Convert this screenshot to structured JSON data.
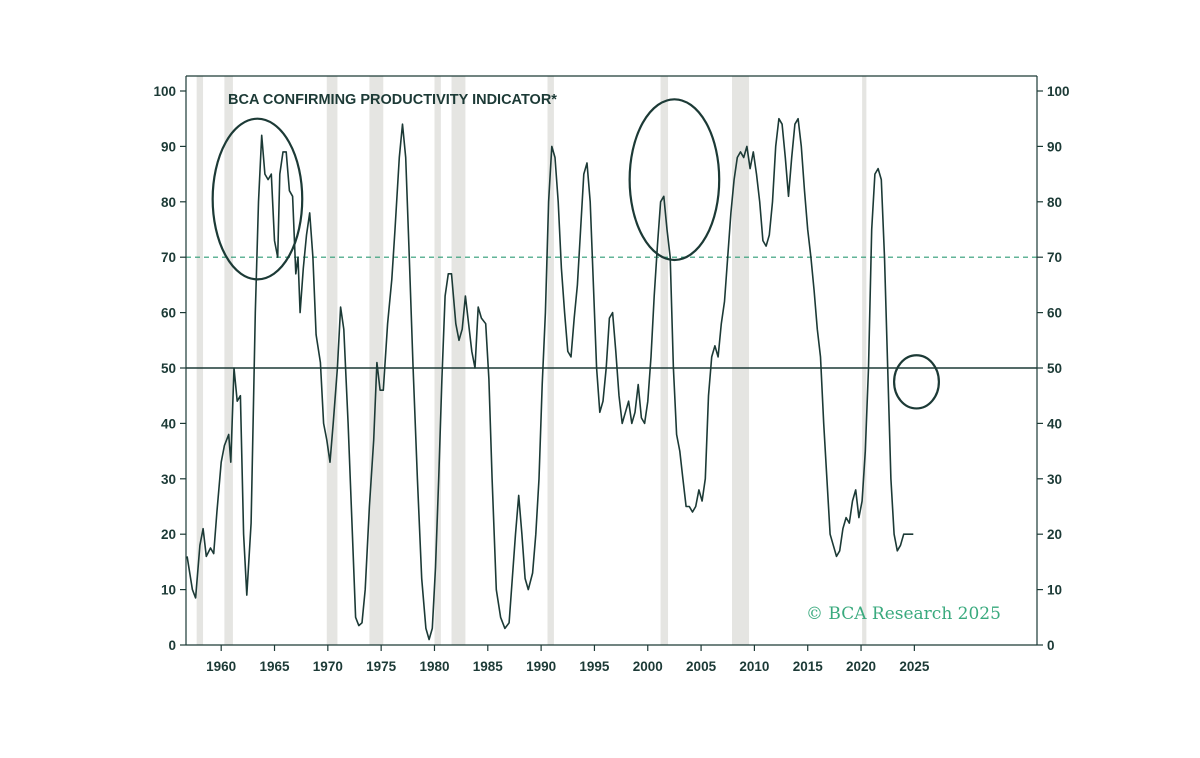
{
  "chart_data": {
    "type": "line",
    "title": "BCA CONFIRMING PRODUCTIVITY INDICATOR*",
    "credit": "© BCA Research 2025",
    "xlim": [
      1956.7,
      2036.5
    ],
    "ylim": [
      0,
      100
    ],
    "x_ticks": [
      1960,
      1965,
      1970,
      1975,
      1980,
      1985,
      1990,
      1995,
      2000,
      2005,
      2010,
      2015,
      2020,
      2025
    ],
    "y_ticks": [
      0,
      10,
      20,
      30,
      40,
      50,
      60,
      70,
      80,
      90,
      100
    ],
    "reference_lines": [
      {
        "y": 70,
        "style": "dashed",
        "color": "#2e9c76"
      },
      {
        "y": 50,
        "style": "solid",
        "color": "#1c3a36"
      }
    ],
    "recessions": [
      [
        1957.7,
        1958.3
      ],
      [
        1960.3,
        1961.1
      ],
      [
        1969.9,
        1970.9
      ],
      [
        1973.9,
        1975.2
      ],
      [
        1980.0,
        1980.6
      ],
      [
        1981.6,
        1982.9
      ],
      [
        1990.6,
        1991.2
      ],
      [
        2001.2,
        2001.9
      ],
      [
        2007.9,
        2009.5
      ],
      [
        2020.1,
        2020.5
      ]
    ],
    "highlight_circles": [
      {
        "cx": 1963.4,
        "cy": 80.5,
        "rx": 4.2,
        "ry": 14.5
      },
      {
        "cx": 2002.5,
        "cy": 84,
        "rx": 4.2,
        "ry": 14.5
      },
      {
        "cx": 2025.2,
        "cy": 47.5,
        "rx": 2.1,
        "ry": 4.8
      }
    ],
    "series": [
      {
        "color": "#1c3a36",
        "points": [
          [
            1956.8,
            16
          ],
          [
            1957.3,
            10
          ],
          [
            1957.6,
            8.5
          ],
          [
            1958.0,
            18
          ],
          [
            1958.3,
            21
          ],
          [
            1958.6,
            16
          ],
          [
            1959.0,
            17.5
          ],
          [
            1959.3,
            16.5
          ],
          [
            1959.6,
            24
          ],
          [
            1960.0,
            33
          ],
          [
            1960.3,
            36
          ],
          [
            1960.7,
            38
          ],
          [
            1960.9,
            33
          ],
          [
            1961.2,
            50
          ],
          [
            1961.5,
            44
          ],
          [
            1961.8,
            45
          ],
          [
            1962.1,
            20
          ],
          [
            1962.4,
            9
          ],
          [
            1962.8,
            22
          ],
          [
            1963.2,
            60
          ],
          [
            1963.5,
            80
          ],
          [
            1963.8,
            92
          ],
          [
            1964.1,
            85
          ],
          [
            1964.4,
            84
          ],
          [
            1964.7,
            85
          ],
          [
            1965.0,
            73
          ],
          [
            1965.3,
            70
          ],
          [
            1965.5,
            85
          ],
          [
            1965.8,
            89
          ],
          [
            1966.1,
            89
          ],
          [
            1966.4,
            82
          ],
          [
            1966.7,
            81
          ],
          [
            1967.0,
            67
          ],
          [
            1967.2,
            70
          ],
          [
            1967.4,
            60
          ],
          [
            1967.7,
            68
          ],
          [
            1968.0,
            74
          ],
          [
            1968.3,
            78
          ],
          [
            1968.6,
            70
          ],
          [
            1968.9,
            56
          ],
          [
            1969.3,
            51
          ],
          [
            1969.6,
            40
          ],
          [
            1969.9,
            37
          ],
          [
            1970.2,
            33
          ],
          [
            1970.5,
            40
          ],
          [
            1970.9,
            50
          ],
          [
            1971.2,
            61
          ],
          [
            1971.5,
            57
          ],
          [
            1971.9,
            40
          ],
          [
            1972.3,
            20
          ],
          [
            1972.6,
            5
          ],
          [
            1972.9,
            3.5
          ],
          [
            1973.2,
            4
          ],
          [
            1973.5,
            10
          ],
          [
            1973.9,
            25
          ],
          [
            1974.3,
            37
          ],
          [
            1974.6,
            51
          ],
          [
            1974.9,
            46
          ],
          [
            1975.2,
            46
          ],
          [
            1975.6,
            58
          ],
          [
            1976.0,
            66
          ],
          [
            1976.3,
            75
          ],
          [
            1976.7,
            88
          ],
          [
            1977.0,
            94
          ],
          [
            1977.3,
            88
          ],
          [
            1977.6,
            72
          ],
          [
            1978.0,
            50
          ],
          [
            1978.4,
            30
          ],
          [
            1978.8,
            12
          ],
          [
            1979.2,
            3
          ],
          [
            1979.5,
            1
          ],
          [
            1979.8,
            3
          ],
          [
            1980.1,
            14
          ],
          [
            1980.4,
            30
          ],
          [
            1980.7,
            48
          ],
          [
            1981.0,
            63
          ],
          [
            1981.3,
            67
          ],
          [
            1981.6,
            67
          ],
          [
            1982.0,
            58
          ],
          [
            1982.3,
            55
          ],
          [
            1982.6,
            57
          ],
          [
            1982.9,
            63
          ],
          [
            1983.2,
            58
          ],
          [
            1983.5,
            53
          ],
          [
            1983.8,
            50
          ],
          [
            1984.1,
            61
          ],
          [
            1984.4,
            59
          ],
          [
            1984.8,
            58
          ],
          [
            1985.1,
            48
          ],
          [
            1985.4,
            30
          ],
          [
            1985.8,
            10
          ],
          [
            1986.2,
            5
          ],
          [
            1986.6,
            3
          ],
          [
            1987.0,
            4
          ],
          [
            1987.3,
            12
          ],
          [
            1987.6,
            20
          ],
          [
            1987.9,
            27
          ],
          [
            1988.2,
            20
          ],
          [
            1988.5,
            12
          ],
          [
            1988.8,
            10
          ],
          [
            1989.2,
            13
          ],
          [
            1989.5,
            20
          ],
          [
            1989.8,
            30
          ],
          [
            1990.1,
            47
          ],
          [
            1990.4,
            60
          ],
          [
            1990.7,
            80
          ],
          [
            1991.0,
            90
          ],
          [
            1991.3,
            88
          ],
          [
            1991.6,
            80
          ],
          [
            1991.9,
            68
          ],
          [
            1992.2,
            60
          ],
          [
            1992.5,
            53
          ],
          [
            1992.8,
            52
          ],
          [
            1993.1,
            59
          ],
          [
            1993.4,
            65
          ],
          [
            1993.7,
            75
          ],
          [
            1994.0,
            85
          ],
          [
            1994.3,
            87
          ],
          [
            1994.6,
            80
          ],
          [
            1994.9,
            65
          ],
          [
            1995.2,
            50
          ],
          [
            1995.5,
            42
          ],
          [
            1995.8,
            44
          ],
          [
            1996.1,
            50
          ],
          [
            1996.4,
            59
          ],
          [
            1996.7,
            60
          ],
          [
            1997.0,
            53
          ],
          [
            1997.3,
            45
          ],
          [
            1997.6,
            40
          ],
          [
            1997.9,
            42
          ],
          [
            1998.2,
            44
          ],
          [
            1998.5,
            40
          ],
          [
            1998.8,
            42
          ],
          [
            1999.1,
            47
          ],
          [
            1999.4,
            41
          ],
          [
            1999.7,
            40
          ],
          [
            2000.0,
            44
          ],
          [
            2000.3,
            52
          ],
          [
            2000.6,
            63
          ],
          [
            2000.9,
            72
          ],
          [
            2001.2,
            80
          ],
          [
            2001.5,
            81
          ],
          [
            2001.8,
            75
          ],
          [
            2002.1,
            70
          ],
          [
            2002.4,
            50
          ],
          [
            2002.7,
            38
          ],
          [
            2003.0,
            35
          ],
          [
            2003.3,
            30
          ],
          [
            2003.6,
            25
          ],
          [
            2003.9,
            25
          ],
          [
            2004.2,
            24
          ],
          [
            2004.5,
            25
          ],
          [
            2004.8,
            28
          ],
          [
            2005.1,
            26
          ],
          [
            2005.4,
            30
          ],
          [
            2005.7,
            45
          ],
          [
            2006.0,
            52
          ],
          [
            2006.3,
            54
          ],
          [
            2006.6,
            52
          ],
          [
            2006.9,
            58
          ],
          [
            2007.2,
            62
          ],
          [
            2007.5,
            70
          ],
          [
            2007.8,
            78
          ],
          [
            2008.1,
            84
          ],
          [
            2008.4,
            88
          ],
          [
            2008.7,
            89
          ],
          [
            2009.0,
            88
          ],
          [
            2009.3,
            90
          ],
          [
            2009.6,
            86
          ],
          [
            2009.9,
            89
          ],
          [
            2010.2,
            85
          ],
          [
            2010.5,
            80
          ],
          [
            2010.8,
            73
          ],
          [
            2011.1,
            72
          ],
          [
            2011.4,
            74
          ],
          [
            2011.7,
            80
          ],
          [
            2012.0,
            90
          ],
          [
            2012.3,
            95
          ],
          [
            2012.6,
            94
          ],
          [
            2012.9,
            88
          ],
          [
            2013.2,
            81
          ],
          [
            2013.5,
            88
          ],
          [
            2013.8,
            94
          ],
          [
            2014.1,
            95
          ],
          [
            2014.4,
            90
          ],
          [
            2014.7,
            82
          ],
          [
            2015.0,
            75
          ],
          [
            2015.3,
            70
          ],
          [
            2015.6,
            64
          ],
          [
            2015.9,
            57
          ],
          [
            2016.2,
            52
          ],
          [
            2016.5,
            40
          ],
          [
            2016.8,
            30
          ],
          [
            2017.1,
            20
          ],
          [
            2017.4,
            18
          ],
          [
            2017.7,
            16
          ],
          [
            2018.0,
            17
          ],
          [
            2018.3,
            21
          ],
          [
            2018.6,
            23
          ],
          [
            2018.9,
            22
          ],
          [
            2019.2,
            26
          ],
          [
            2019.5,
            28
          ],
          [
            2019.8,
            23
          ],
          [
            2020.1,
            26
          ],
          [
            2020.4,
            35
          ],
          [
            2020.7,
            50
          ],
          [
            2021.0,
            75
          ],
          [
            2021.3,
            85
          ],
          [
            2021.6,
            86
          ],
          [
            2021.9,
            84
          ],
          [
            2022.2,
            70
          ],
          [
            2022.5,
            50
          ],
          [
            2022.8,
            30
          ],
          [
            2023.1,
            20
          ],
          [
            2023.4,
            17
          ],
          [
            2023.7,
            18
          ],
          [
            2024.0,
            20
          ],
          [
            2024.3,
            20
          ],
          [
            2024.6,
            20
          ],
          [
            2024.9,
            20
          ]
        ]
      }
    ]
  }
}
